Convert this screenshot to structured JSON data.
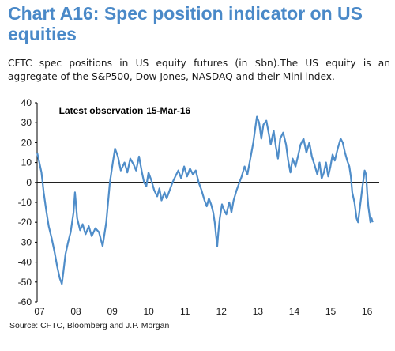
{
  "title": "Chart A16: Spec position indicator on US equities",
  "subtitle": "CFTC spec positions in US equity futures (in $bn).The US equity is an aggregate of the S&P500, Dow Jones, NASDAQ and their Mini index.",
  "source": "Source:  CFTC, Bloomberg and J.P. Morgan",
  "colors": {
    "title": "#4a89c8",
    "line": "#4f8dc9",
    "zero_line": "#000000",
    "text": "#1a1a1a"
  },
  "chart_data": {
    "type": "line",
    "title": "",
    "xlabel": "",
    "ylabel": "",
    "grid": false,
    "legend": "none",
    "xlim": [
      2007.0,
      2016.4
    ],
    "ylim": [
      -60,
      40
    ],
    "y_ticks": [
      40,
      30,
      20,
      10,
      0,
      -10,
      -20,
      -30,
      -40,
      -50,
      -60
    ],
    "x_ticks": [
      {
        "label": "07",
        "x": 2007.0
      },
      {
        "label": "08",
        "x": 2008.0
      },
      {
        "label": "09",
        "x": 2009.0
      },
      {
        "label": "10",
        "x": 2010.0
      },
      {
        "label": "11",
        "x": 2011.0
      },
      {
        "label": "12",
        "x": 2012.0
      },
      {
        "label": "13",
        "x": 2013.0
      },
      {
        "label": "14",
        "x": 2014.0
      },
      {
        "label": "15",
        "x": 2015.0
      },
      {
        "label": "16",
        "x": 2016.0
      }
    ],
    "annotations": [
      {
        "text": "Latest observation",
        "x": 2007.6,
        "y": 36
      },
      {
        "text": "15-Mar-16",
        "x": 2010.0,
        "y": 36
      }
    ],
    "series": [
      {
        "color": "#4f8dc9",
        "points": [
          [
            2007.0,
            15
          ],
          [
            2007.06,
            10
          ],
          [
            2007.12,
            5
          ],
          [
            2007.18,
            -5
          ],
          [
            2007.25,
            -14
          ],
          [
            2007.32,
            -22
          ],
          [
            2007.4,
            -28
          ],
          [
            2007.48,
            -35
          ],
          [
            2007.55,
            -42
          ],
          [
            2007.62,
            -48
          ],
          [
            2007.68,
            -51
          ],
          [
            2007.72,
            -45
          ],
          [
            2007.78,
            -36
          ],
          [
            2007.85,
            -30
          ],
          [
            2007.92,
            -25
          ],
          [
            2008.0,
            -15
          ],
          [
            2008.04,
            -5
          ],
          [
            2008.1,
            -18
          ],
          [
            2008.18,
            -24
          ],
          [
            2008.25,
            -21
          ],
          [
            2008.33,
            -26
          ],
          [
            2008.42,
            -22
          ],
          [
            2008.5,
            -27
          ],
          [
            2008.6,
            -23
          ],
          [
            2008.7,
            -25
          ],
          [
            2008.8,
            -32
          ],
          [
            2008.9,
            -20
          ],
          [
            2008.95,
            -10
          ],
          [
            2009.0,
            0
          ],
          [
            2009.08,
            10
          ],
          [
            2009.14,
            17
          ],
          [
            2009.22,
            13
          ],
          [
            2009.3,
            6
          ],
          [
            2009.4,
            10
          ],
          [
            2009.48,
            5
          ],
          [
            2009.56,
            12
          ],
          [
            2009.65,
            9
          ],
          [
            2009.72,
            6
          ],
          [
            2009.8,
            13
          ],
          [
            2009.88,
            5
          ],
          [
            2009.94,
            0
          ],
          [
            2010.0,
            -2
          ],
          [
            2010.06,
            5
          ],
          [
            2010.14,
            1
          ],
          [
            2010.22,
            -4
          ],
          [
            2010.3,
            -7
          ],
          [
            2010.36,
            -3
          ],
          [
            2010.42,
            -9
          ],
          [
            2010.5,
            -5
          ],
          [
            2010.56,
            -8
          ],
          [
            2010.64,
            -4
          ],
          [
            2010.72,
            0
          ],
          [
            2010.8,
            3
          ],
          [
            2010.88,
            6
          ],
          [
            2010.96,
            2
          ],
          [
            2011.04,
            8
          ],
          [
            2011.12,
            3
          ],
          [
            2011.2,
            7
          ],
          [
            2011.28,
            4
          ],
          [
            2011.36,
            6
          ],
          [
            2011.44,
            0
          ],
          [
            2011.52,
            -4
          ],
          [
            2011.6,
            -9
          ],
          [
            2011.66,
            -12
          ],
          [
            2011.72,
            -8
          ],
          [
            2011.78,
            -11
          ],
          [
            2011.84,
            -15
          ],
          [
            2011.88,
            -20
          ],
          [
            2011.92,
            -27
          ],
          [
            2011.95,
            -32
          ],
          [
            2011.98,
            -25
          ],
          [
            2012.02,
            -18
          ],
          [
            2012.08,
            -11
          ],
          [
            2012.14,
            -14
          ],
          [
            2012.2,
            -16
          ],
          [
            2012.28,
            -10
          ],
          [
            2012.34,
            -15
          ],
          [
            2012.4,
            -9
          ],
          [
            2012.48,
            -4
          ],
          [
            2012.56,
            0
          ],
          [
            2012.62,
            3
          ],
          [
            2012.7,
            8
          ],
          [
            2012.78,
            4
          ],
          [
            2012.86,
            12
          ],
          [
            2012.94,
            20
          ],
          [
            2013.0,
            28
          ],
          [
            2013.04,
            33
          ],
          [
            2013.1,
            30
          ],
          [
            2013.16,
            22
          ],
          [
            2013.22,
            29
          ],
          [
            2013.3,
            31
          ],
          [
            2013.36,
            25
          ],
          [
            2013.42,
            19
          ],
          [
            2013.5,
            26
          ],
          [
            2013.56,
            18
          ],
          [
            2013.62,
            12
          ],
          [
            2013.68,
            22
          ],
          [
            2013.76,
            25
          ],
          [
            2013.84,
            19
          ],
          [
            2013.9,
            11
          ],
          [
            2013.96,
            5
          ],
          [
            2014.02,
            12
          ],
          [
            2014.1,
            8
          ],
          [
            2014.18,
            14
          ],
          [
            2014.24,
            19
          ],
          [
            2014.32,
            22
          ],
          [
            2014.4,
            15
          ],
          [
            2014.48,
            20
          ],
          [
            2014.55,
            13
          ],
          [
            2014.62,
            9
          ],
          [
            2014.7,
            4
          ],
          [
            2014.76,
            10
          ],
          [
            2014.82,
            2
          ],
          [
            2014.88,
            5
          ],
          [
            2014.94,
            10
          ],
          [
            2015.0,
            3
          ],
          [
            2015.06,
            8
          ],
          [
            2015.12,
            14
          ],
          [
            2015.18,
            11
          ],
          [
            2015.26,
            17
          ],
          [
            2015.34,
            22
          ],
          [
            2015.4,
            20
          ],
          [
            2015.46,
            15
          ],
          [
            2015.52,
            11
          ],
          [
            2015.58,
            8
          ],
          [
            2015.62,
            3
          ],
          [
            2015.66,
            -5
          ],
          [
            2015.72,
            -10
          ],
          [
            2015.78,
            -18
          ],
          [
            2015.82,
            -20
          ],
          [
            2015.86,
            -14
          ],
          [
            2015.9,
            -8
          ],
          [
            2015.94,
            -2
          ],
          [
            2015.98,
            3
          ],
          [
            2016.0,
            6
          ],
          [
            2016.04,
            4
          ],
          [
            2016.07,
            -5
          ],
          [
            2016.1,
            -12
          ],
          [
            2016.13,
            -16
          ],
          [
            2016.16,
            -20
          ],
          [
            2016.19,
            -18
          ],
          [
            2016.22,
            -20
          ]
        ]
      }
    ]
  }
}
